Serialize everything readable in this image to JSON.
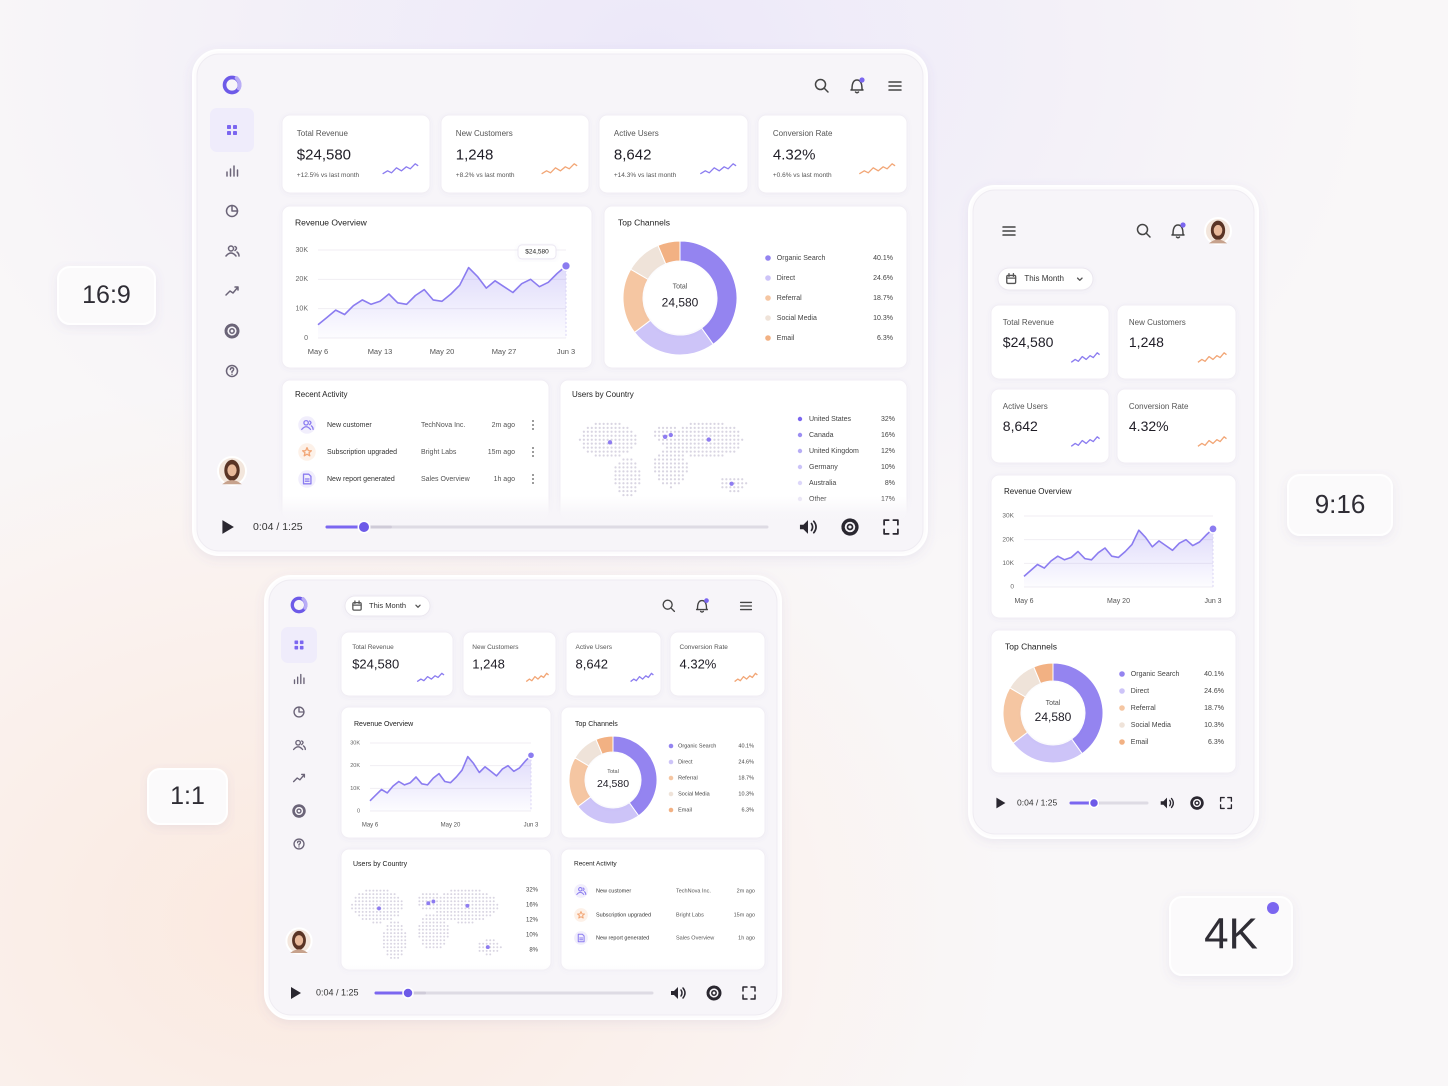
{
  "badges": {
    "wide": "16:9",
    "square": "1:1",
    "tall": "9:16",
    "resolution": "4K"
  },
  "period": "This Month",
  "kpis": [
    {
      "label": "Total Revenue",
      "value": "$24,580",
      "change": "+12.5% vs last month"
    },
    {
      "label": "New Customers",
      "value": "1,248",
      "change": "+8.2% vs last month"
    },
    {
      "label": "Active Users",
      "value": "8,642",
      "change": "+14.3% vs last month"
    },
    {
      "label": "Conversion Rate",
      "value": "4.32%",
      "change": "+0.6% vs last month"
    }
  ],
  "chart_data": [
    {
      "type": "line",
      "title": "Revenue Overview",
      "categories": [
        "May 6",
        null,
        null,
        null,
        null,
        null,
        null,
        "May 13",
        null,
        null,
        null,
        null,
        null,
        null,
        "May 20",
        null,
        null,
        null,
        null,
        null,
        null,
        "May 27",
        null,
        null,
        null,
        null,
        null,
        null,
        "Jun 3"
      ],
      "values": [
        4500,
        7000,
        9500,
        8000,
        11000,
        13000,
        11500,
        12500,
        15000,
        12000,
        11500,
        14500,
        16500,
        13000,
        12500,
        15000,
        18000,
        24000,
        21000,
        17000,
        19500,
        17500,
        15500,
        18500,
        20000,
        17500,
        19000,
        22000,
        24580
      ],
      "annotation": "$24,580",
      "color": "#8b7cf0",
      "ylim": [
        0,
        30000
      ],
      "yticks": [
        0,
        {
          "value": 10000,
          "label": "10K"
        },
        {
          "value": 20000,
          "label": "20K"
        },
        {
          "value": 30000,
          "label": "30K"
        }
      ],
      "grid": true
    },
    {
      "type": "donut",
      "title": "Top Channels",
      "center_label": "Total",
      "center_value": "24,580",
      "categories": [
        "Organic Search",
        "Direct",
        "Referral",
        "Social Media",
        "Email"
      ],
      "values": [
        40.1,
        24.6,
        18.7,
        10.3,
        6.3
      ],
      "value_labels": [
        "40.1%",
        "24.6%",
        "18.7%",
        "10.3%",
        "6.3%"
      ],
      "colors": [
        "#9484f0",
        "#cdc4f8",
        "#f5c6a2",
        "#efe3d9",
        "#f2b183"
      ]
    }
  ],
  "activity": {
    "title": "Recent Activity",
    "items": [
      {
        "event": "New customer",
        "source": "TechNova Inc.",
        "time": "2m ago"
      },
      {
        "event": "Subscription upgraded",
        "source": "Bright Labs",
        "time": "15m ago"
      },
      {
        "event": "New report generated",
        "source": "Sales Overview",
        "time": "1h ago"
      }
    ]
  },
  "countries": {
    "title": "Users by Country",
    "items": [
      {
        "name": "United States",
        "share": "32%"
      },
      {
        "name": "Canada",
        "share": "16%"
      },
      {
        "name": "United Kingdom",
        "share": "12%"
      },
      {
        "name": "Germany",
        "share": "10%"
      },
      {
        "name": "Australia",
        "share": "8%"
      },
      {
        "name": "Other",
        "share": "17%"
      }
    ]
  },
  "player": {
    "time": "0:04 / 1:25"
  }
}
